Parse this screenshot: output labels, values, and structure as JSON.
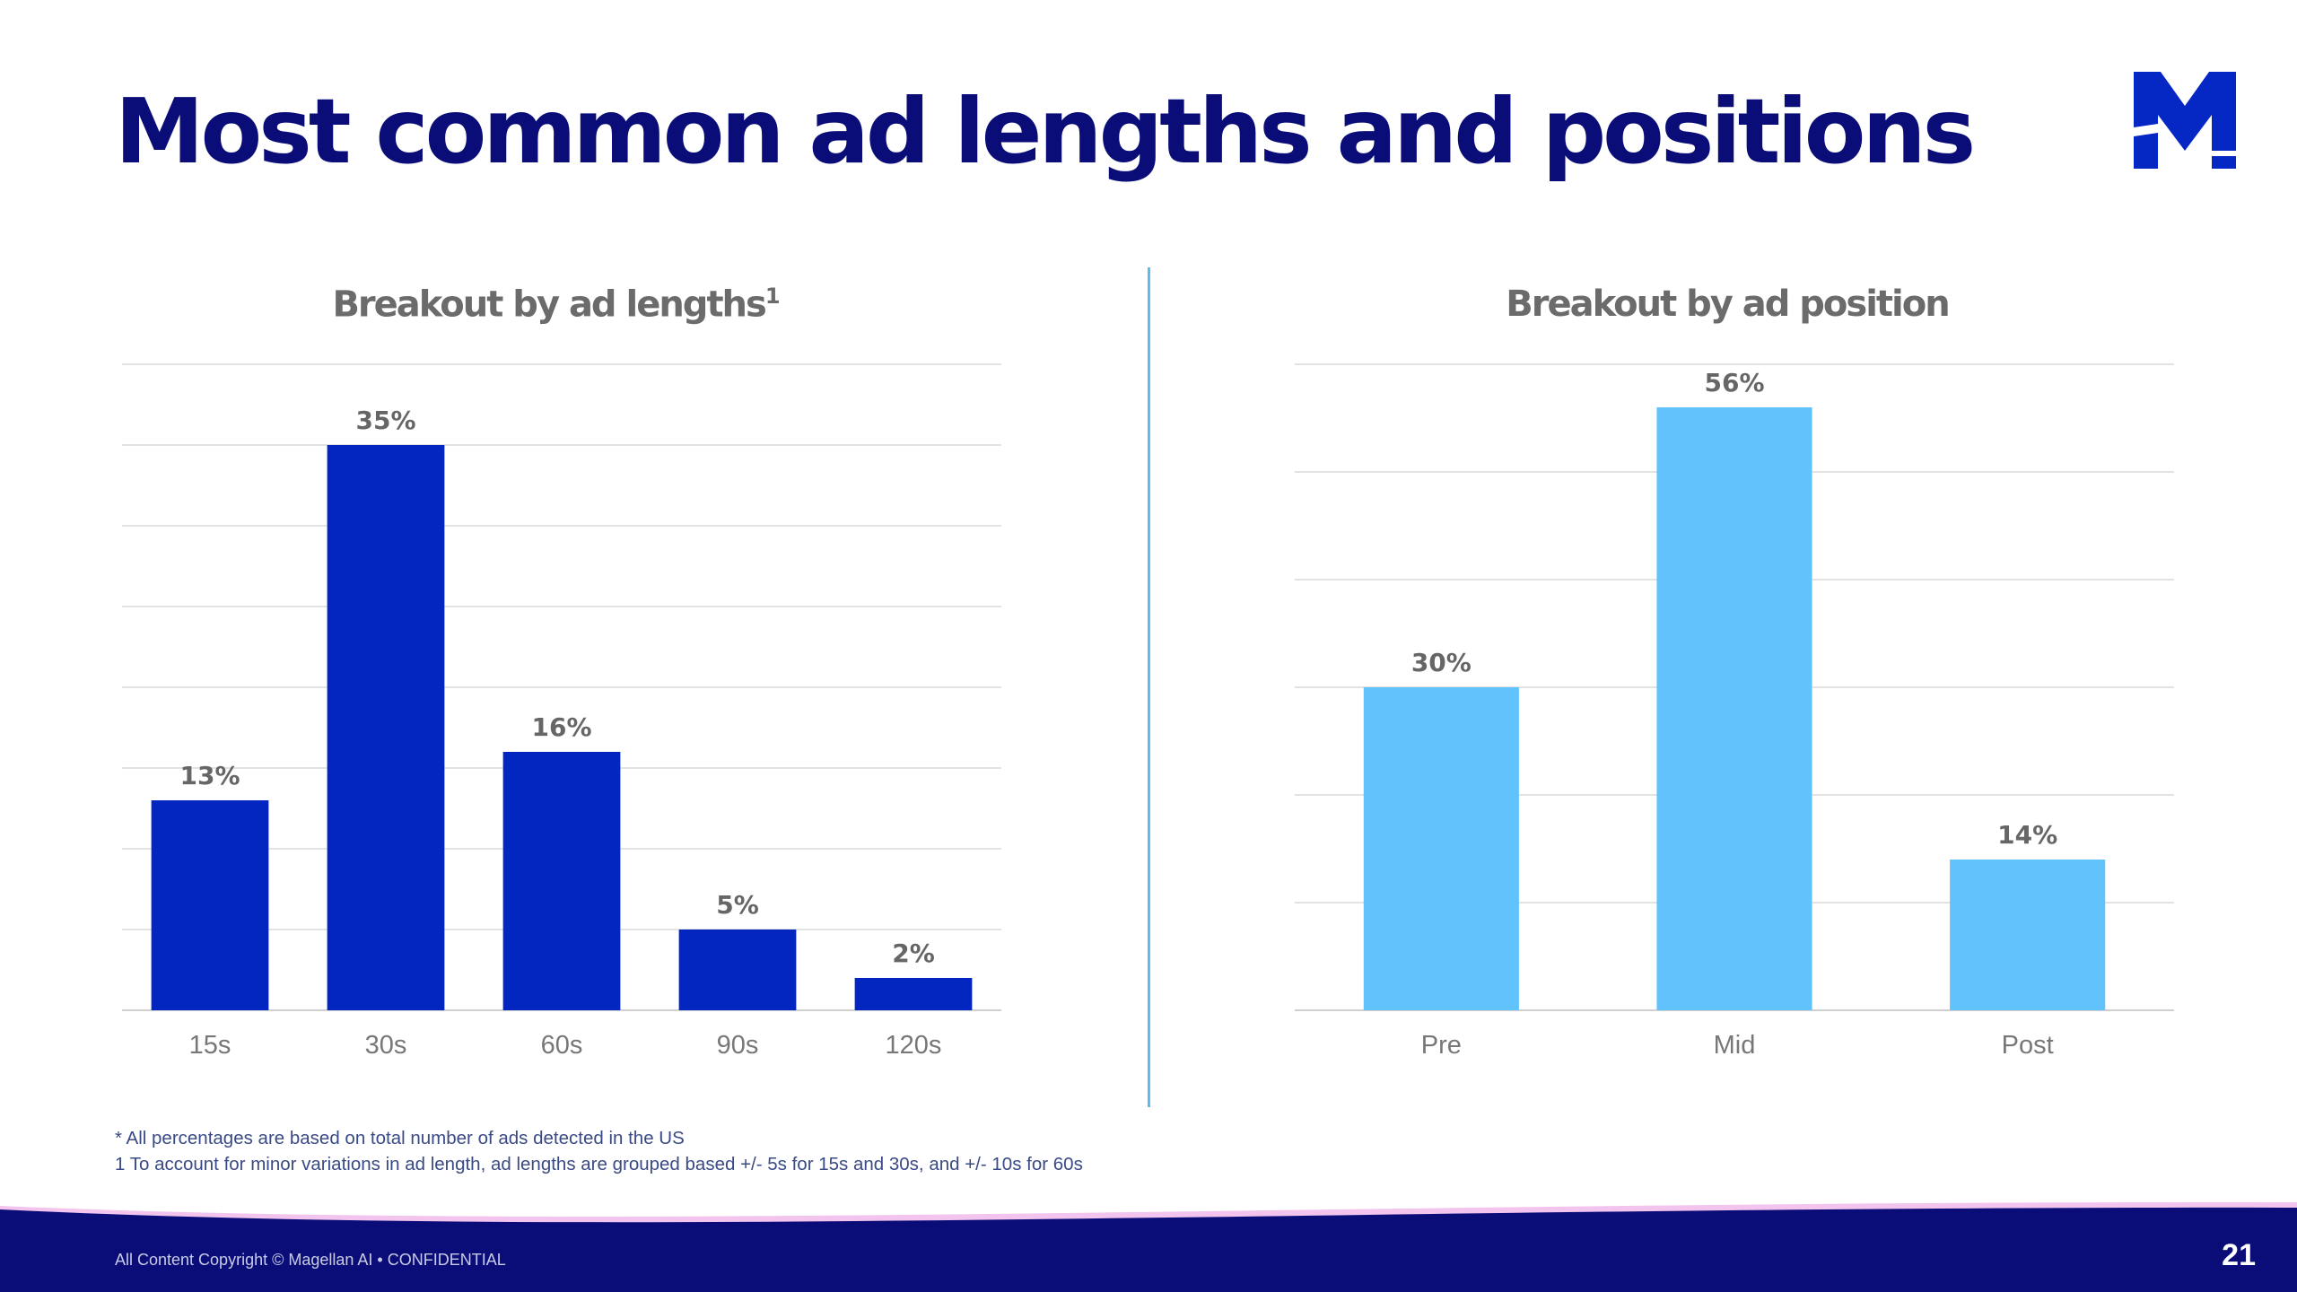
{
  "slide": {
    "title": "Most common ad lengths and positions",
    "page_number": "21",
    "copyright": "All Content Copyright © Magellan AI • CONFIDENTIAL",
    "footnotes": [
      "* All percentages are based on total number of ads detected in the US",
      "1 To account for minor variations in ad length, ad lengths are grouped based +/- 5s for 15s and 30s, and +/- 10s for 60s"
    ],
    "logo_icon": "magellan-m-logo",
    "colors": {
      "title": "#0a0d78",
      "logo": "#0527c4",
      "divider": "#5bbcf0",
      "footer": "#0a0d78",
      "footer_wave": "#f2c4ee"
    }
  },
  "chart_data": [
    {
      "type": "bar",
      "title": "Breakout by ad lengths",
      "title_superscript": "1",
      "categories": [
        "15s",
        "30s",
        "60s",
        "90s",
        "120s"
      ],
      "values": [
        13,
        35,
        16,
        5,
        2
      ],
      "data_labels": [
        "13%",
        "35%",
        "16%",
        "5%",
        "2%"
      ],
      "ylim": [
        0,
        40
      ],
      "gridlines": 8,
      "grid": true,
      "legend": "none",
      "color": "#0325c0"
    },
    {
      "type": "bar",
      "title": "Breakout by ad position",
      "categories": [
        "Pre",
        "Mid",
        "Post"
      ],
      "values": [
        30,
        56,
        14
      ],
      "data_labels": [
        "30%",
        "56%",
        "14%"
      ],
      "ylim": [
        0,
        60
      ],
      "gridlines": 6,
      "grid": true,
      "legend": "none",
      "color": "#62c3fc"
    }
  ]
}
